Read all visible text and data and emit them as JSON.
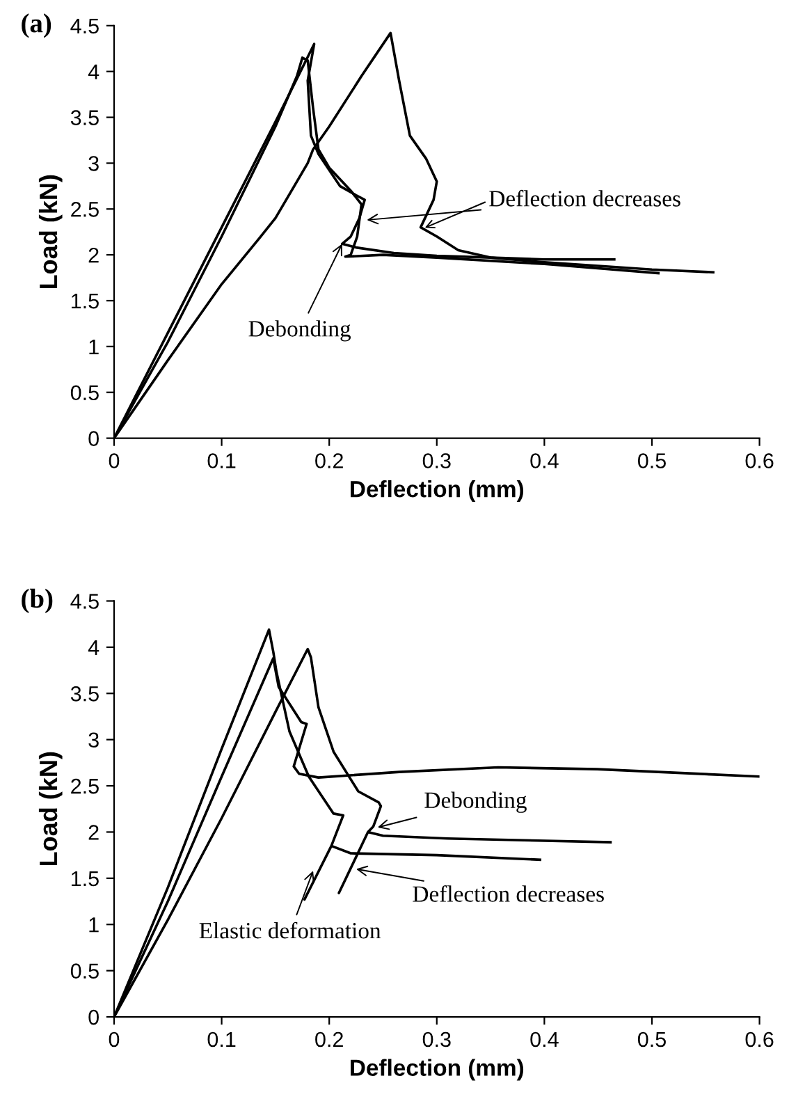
{
  "chart_data": [
    {
      "type": "line",
      "title": "(a)",
      "xlabel": "Deflection (mm)",
      "ylabel": "Load (kN)",
      "xlim": [
        0,
        0.6
      ],
      "ylim": [
        0,
        4.5
      ],
      "xticks": [
        0,
        0.1,
        0.2,
        0.3,
        0.4,
        0.5,
        0.6
      ],
      "yticks": [
        0,
        0.5,
        1,
        1.5,
        2,
        2.5,
        3,
        3.5,
        4,
        4.5
      ],
      "grid": false,
      "legend": false,
      "marker": "none",
      "line_style": "solid",
      "series": [
        {
          "color": "#000000",
          "x": [
            0,
            0.05,
            0.1,
            0.15,
            0.186,
            0.18,
            0.183,
            0.19,
            0.21,
            0.225,
            0.233,
            0.228,
            0.22,
            0.212,
            0.225,
            0.26,
            0.3,
            0.35,
            0.4,
            0.465
          ],
          "values": [
            0,
            1.15,
            2.3,
            3.45,
            4.3,
            3.9,
            3.3,
            3.1,
            2.75,
            2.65,
            2.6,
            2.4,
            2.2,
            2.12,
            2.08,
            2.02,
            1.99,
            1.97,
            1.95,
            1.95
          ]
        },
        {
          "color": "#000000",
          "x": [
            0,
            0.05,
            0.1,
            0.15,
            0.17,
            0.175,
            0.18,
            0.185,
            0.19,
            0.2,
            0.22,
            0.23,
            0.226,
            0.22,
            0.215,
            0.25,
            0.3,
            0.4,
            0.506
          ],
          "values": [
            0,
            1.05,
            2.2,
            3.4,
            3.95,
            4.15,
            4.12,
            3.6,
            3.15,
            2.95,
            2.7,
            2.55,
            2.2,
            2.0,
            1.98,
            2.0,
            1.97,
            1.9,
            1.8
          ]
        },
        {
          "color": "#000000",
          "x": [
            0,
            0.05,
            0.1,
            0.135,
            0.15,
            0.18,
            0.185,
            0.2,
            0.23,
            0.257,
            0.265,
            0.275,
            0.29,
            0.3,
            0.297,
            0.285,
            0.3,
            0.32,
            0.35,
            0.4,
            0.45,
            0.5,
            0.557
          ],
          "values": [
            0,
            0.85,
            1.68,
            2.18,
            2.4,
            3.0,
            3.15,
            3.4,
            3.95,
            4.42,
            3.9,
            3.3,
            3.05,
            2.8,
            2.6,
            2.3,
            2.2,
            2.05,
            1.97,
            1.92,
            1.88,
            1.84,
            1.81
          ]
        }
      ],
      "annotations": [
        {
          "text": "Deflection decreases",
          "x": 0.235,
          "y": 2.38
        },
        {
          "text": "Debonding",
          "x": 0.212,
          "y": 2.12
        }
      ]
    },
    {
      "type": "line",
      "title": "(b)",
      "xlabel": "Deflection (mm)",
      "ylabel": "Load (kN)",
      "xlim": [
        0,
        0.6
      ],
      "ylim": [
        0,
        4.5
      ],
      "xticks": [
        0,
        0.1,
        0.2,
        0.3,
        0.4,
        0.5,
        0.6
      ],
      "yticks": [
        0,
        0.5,
        1,
        1.5,
        2,
        2.5,
        3,
        3.5,
        4,
        4.5
      ],
      "grid": false,
      "legend": false,
      "marker": "none",
      "line_style": "solid",
      "series": [
        {
          "color": "#000000",
          "x": [
            0,
            0.05,
            0.1,
            0.144,
            0.148,
            0.151,
            0.163,
            0.181,
            0.204,
            0.213,
            0.207,
            0.202,
            0.177,
            0.202,
            0.22,
            0.3,
            0.396
          ],
          "values": [
            0,
            1.4,
            2.9,
            4.19,
            3.95,
            3.73,
            3.09,
            2.6,
            2.2,
            2.18,
            2.0,
            1.85,
            1.27,
            1.85,
            1.77,
            1.75,
            1.7
          ]
        },
        {
          "color": "#000000",
          "x": [
            0,
            0.05,
            0.1,
            0.148,
            0.153,
            0.174,
            0.179,
            0.167,
            0.172,
            0.19,
            0.265,
            0.357,
            0.449,
            0.6
          ],
          "values": [
            0,
            1.25,
            2.6,
            3.88,
            3.57,
            3.19,
            3.17,
            2.71,
            2.63,
            2.59,
            2.65,
            2.7,
            2.68,
            2.6
          ]
        },
        {
          "color": "#000000",
          "x": [
            0,
            0.05,
            0.1,
            0.15,
            0.18,
            0.183,
            0.19,
            0.204,
            0.227,
            0.246,
            0.248,
            0.241,
            0.236,
            0.209,
            0.236,
            0.25,
            0.31,
            0.4615
          ],
          "values": [
            0,
            1.05,
            2.15,
            3.3,
            3.98,
            3.89,
            3.35,
            2.87,
            2.44,
            2.32,
            2.28,
            2.06,
            2.0,
            1.34,
            2.0,
            1.96,
            1.93,
            1.89
          ]
        }
      ],
      "annotations": [
        {
          "text": "Debonding",
          "x": 0.245,
          "y": 2.05
        },
        {
          "text": "Deflection decreases",
          "x": 0.225,
          "y": 1.6
        },
        {
          "text": "Elastic deformation",
          "x": 0.185,
          "y": 1.58
        }
      ]
    }
  ]
}
